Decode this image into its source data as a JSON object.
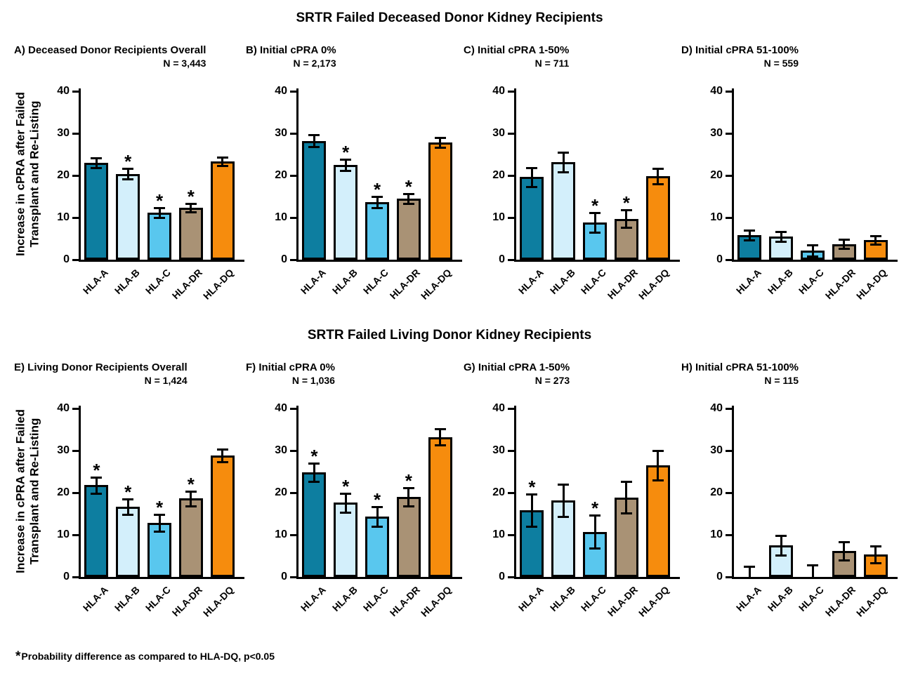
{
  "page": {
    "footnote_star": "*",
    "footnote_text": "Probability difference as compared to HLA-DQ, p<0.05"
  },
  "sections": [
    {
      "title": "SRTR Failed Deceased Donor Kidney Recipients"
    },
    {
      "title": "SRTR Failed Living Donor Kidney Recipients"
    }
  ],
  "y_axis": {
    "label_lines": [
      "Increase in cPRA after Failed",
      "Transplant and Re-Listing"
    ],
    "ticks": [
      0,
      10,
      20,
      30,
      40
    ],
    "range": [
      0,
      40
    ]
  },
  "bar_colors": {
    "HLA-A": "#0D7EA0",
    "HLA-B": "#D3EFFB",
    "HLA-C": "#59C7EE",
    "HLA-DR": "#A99275",
    "HLA-DQ": "#F68C0D"
  },
  "chart_data": [
    {
      "panel": "A",
      "type": "bar",
      "section": "SRTR Failed Deceased Donor Kidney Recipients",
      "title": "A) Deceased Donor Recipients Overall",
      "n_label": "N = 3,443",
      "categories": [
        "HLA-A",
        "HLA-B",
        "HLA-C",
        "HLA-DR",
        "HLA-DQ"
      ],
      "values": [
        23.0,
        20.4,
        11.2,
        12.3,
        23.4
      ],
      "errors": [
        1.2,
        1.2,
        1.2,
        1.0,
        1.0
      ],
      "significant": [
        false,
        true,
        true,
        true,
        false
      ],
      "ylim": [
        0,
        40
      ],
      "yticks": [
        0,
        10,
        20,
        30,
        40
      ],
      "ylabel": "Increase in cPRA after Failed Transplant and Re-Listing"
    },
    {
      "panel": "B",
      "type": "bar",
      "section": "SRTR Failed Deceased Donor Kidney Recipients",
      "title": "B) Initial cPRA 0%",
      "n_label": "N = 2,173",
      "categories": [
        "HLA-A",
        "HLA-B",
        "HLA-C",
        "HLA-DR",
        "HLA-DQ"
      ],
      "values": [
        28.2,
        22.5,
        13.7,
        14.5,
        27.8
      ],
      "errors": [
        1.4,
        1.4,
        1.3,
        1.2,
        1.2
      ],
      "significant": [
        false,
        true,
        true,
        true,
        false
      ],
      "ylim": [
        0,
        40
      ],
      "yticks": [
        0,
        10,
        20,
        30,
        40
      ]
    },
    {
      "panel": "C",
      "type": "bar",
      "section": "SRTR Failed Deceased Donor Kidney Recipients",
      "title": "C) Initial cPRA 1-50%",
      "n_label": "N = 711",
      "categories": [
        "HLA-A",
        "HLA-B",
        "HLA-C",
        "HLA-DR",
        "HLA-DQ"
      ],
      "values": [
        19.6,
        23.2,
        8.8,
        9.7,
        19.8
      ],
      "errors": [
        2.2,
        2.3,
        2.3,
        2.1,
        1.8
      ],
      "significant": [
        false,
        false,
        true,
        true,
        false
      ],
      "ylim": [
        0,
        40
      ],
      "yticks": [
        0,
        10,
        20,
        30,
        40
      ]
    },
    {
      "panel": "D",
      "type": "bar",
      "section": "SRTR Failed Deceased Donor Kidney Recipients",
      "title": "D) Initial cPRA 51-100%",
      "n_label": "N = 559",
      "categories": [
        "HLA-A",
        "HLA-B",
        "HLA-C",
        "HLA-DR",
        "HLA-DQ"
      ],
      "values": [
        5.8,
        5.5,
        2.2,
        3.7,
        4.6
      ],
      "errors": [
        1.2,
        1.2,
        1.3,
        1.1,
        1.0
      ],
      "significant": [
        false,
        false,
        false,
        false,
        false
      ],
      "ylim": [
        0,
        40
      ],
      "yticks": [
        0,
        10,
        20,
        30,
        40
      ]
    },
    {
      "panel": "E",
      "type": "bar",
      "section": "SRTR Failed Living Donor Kidney Recipients",
      "title": "E) Living Donor Recipients Overall",
      "n_label": "N = 1,424",
      "categories": [
        "HLA-A",
        "HLA-B",
        "HLA-C",
        "HLA-DR",
        "HLA-DQ"
      ],
      "values": [
        21.8,
        16.7,
        12.9,
        18.6,
        28.9
      ],
      "errors": [
        1.9,
        1.8,
        2.0,
        1.7,
        1.5
      ],
      "significant": [
        true,
        true,
        true,
        true,
        false
      ],
      "ylim": [
        0,
        40
      ],
      "yticks": [
        0,
        10,
        20,
        30,
        40
      ],
      "ylabel": "Increase in cPRA after Failed Transplant and Re-Listing"
    },
    {
      "panel": "F",
      "type": "bar",
      "section": "SRTR Failed Living Donor Kidney Recipients",
      "title": "F) Initial cPRA 0%",
      "n_label": "N = 1,036",
      "categories": [
        "HLA-A",
        "HLA-B",
        "HLA-C",
        "HLA-DR",
        "HLA-DQ"
      ],
      "values": [
        24.8,
        17.6,
        14.3,
        19.0,
        33.2
      ],
      "errors": [
        2.2,
        2.2,
        2.3,
        2.1,
        1.9
      ],
      "significant": [
        true,
        true,
        true,
        true,
        false
      ],
      "ylim": [
        0,
        40
      ],
      "yticks": [
        0,
        10,
        20,
        30,
        40
      ]
    },
    {
      "panel": "G",
      "type": "bar",
      "section": "SRTR Failed Living Donor Kidney Recipients",
      "title": "G) Initial cPRA 1-50%",
      "n_label": "N = 273",
      "categories": [
        "HLA-A",
        "HLA-B",
        "HLA-C",
        "HLA-DR",
        "HLA-DQ"
      ],
      "values": [
        15.8,
        18.2,
        10.7,
        18.9,
        26.5
      ],
      "errors": [
        3.8,
        3.8,
        3.9,
        3.8,
        3.5
      ],
      "significant": [
        true,
        false,
        true,
        false,
        false
      ],
      "ylim": [
        0,
        40
      ],
      "yticks": [
        0,
        10,
        20,
        30,
        40
      ]
    },
    {
      "panel": "H",
      "type": "bar",
      "section": "SRTR Failed Living Donor Kidney Recipients",
      "title": "H) Initial cPRA 51-100%",
      "n_label": "N = 115",
      "categories": [
        "HLA-A",
        "HLA-B",
        "HLA-C",
        "HLA-DR",
        "HLA-DQ"
      ],
      "values": [
        0,
        7.5,
        0,
        6.2,
        5.4
      ],
      "errors": [
        2.5,
        2.3,
        2.8,
        2.2,
        2.0
      ],
      "significant": [
        false,
        false,
        false,
        false,
        false
      ],
      "ylim": [
        0,
        40
      ],
      "yticks": [
        0,
        10,
        20,
        30,
        40
      ]
    }
  ]
}
